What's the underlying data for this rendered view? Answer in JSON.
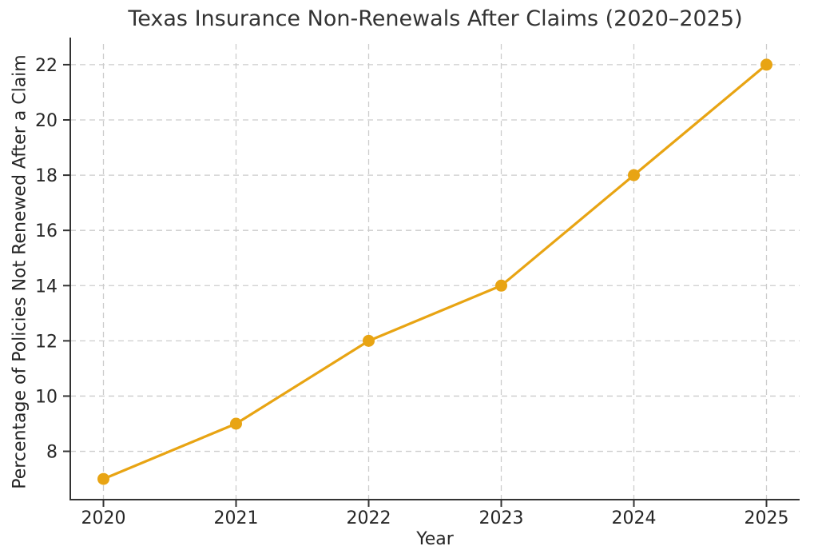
{
  "chart_data": {
    "type": "line",
    "title": "Texas Insurance Non-Renewals After Claims (2020–2025)",
    "xlabel": "Year",
    "ylabel": "Percentage of Policies Not Renewed After a Claim",
    "x": [
      2020,
      2021,
      2022,
      2023,
      2024,
      2025
    ],
    "series": [
      {
        "name": "Percentage of Policies Not Renewed After a Claim",
        "values": [
          7,
          9,
          12,
          14,
          18,
          22
        ]
      }
    ],
    "xticks": [
      2020,
      2021,
      2022,
      2023,
      2024,
      2025
    ],
    "yticks": [
      8,
      10,
      12,
      14,
      16,
      18,
      20,
      22
    ],
    "xlim": [
      2019.75,
      2025.25
    ],
    "ylim": [
      6.25,
      22.75
    ],
    "grid": true,
    "grid_style": "dashed",
    "legend_position": "none",
    "colors": {
      "line": "#E8A413",
      "marker": "#E8A413",
      "grid": "#cccccc",
      "spine": "#333333",
      "tick": "#333333",
      "text": "#262626",
      "title": "#333333",
      "background": "#ffffff"
    }
  }
}
